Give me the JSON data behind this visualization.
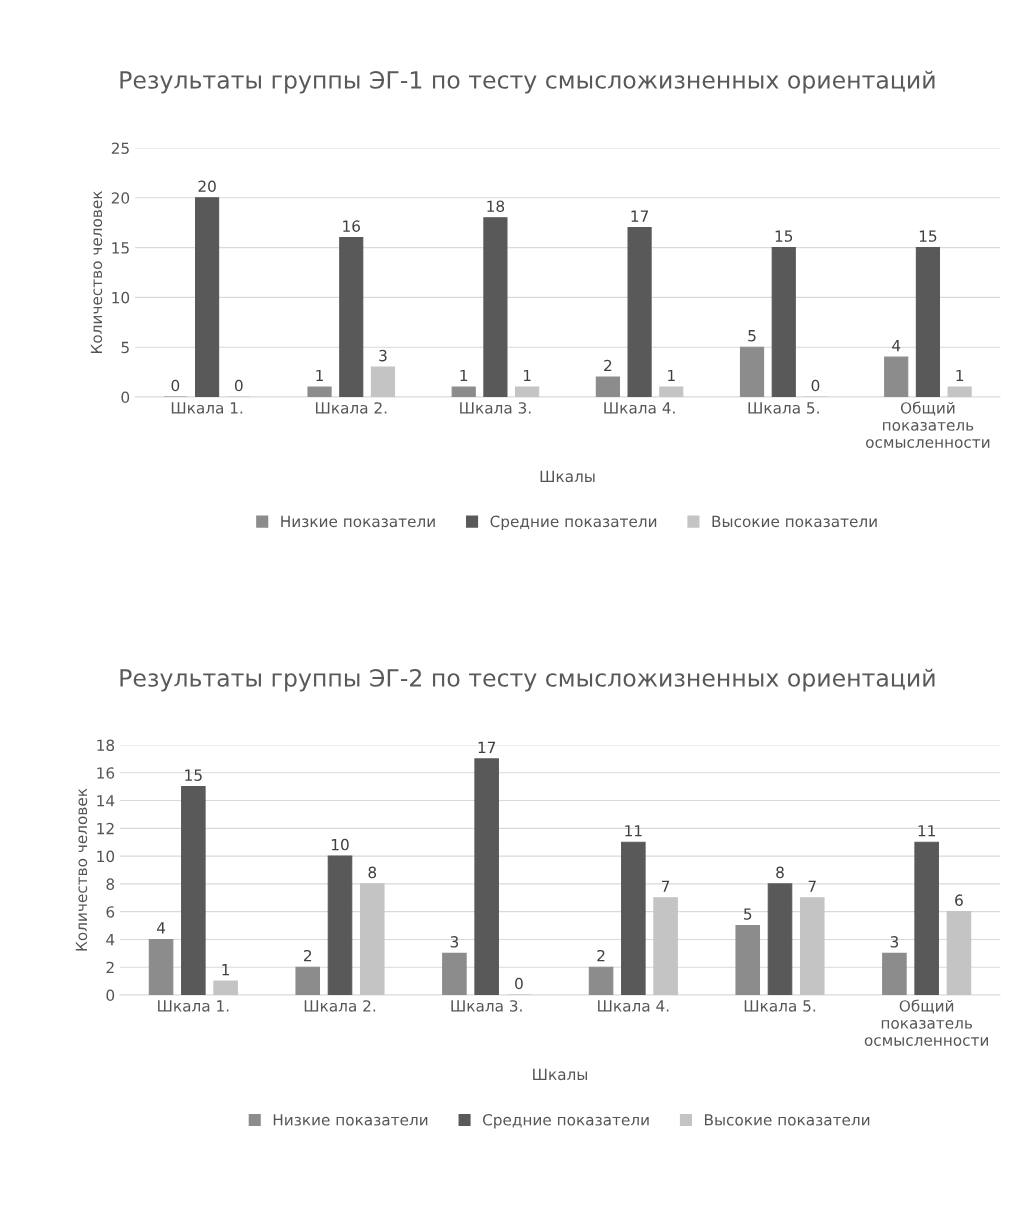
{
  "chart_data": [
    {
      "type": "bar",
      "title": "Результаты группы ЭГ-1 по тесту смысложизненных ориентаций",
      "xlabel": "Шкалы",
      "ylabel": "Количество человек",
      "categories": [
        "Шкала 1.",
        "Шкала 2.",
        "Шкала 3.",
        "Шкала 4.",
        "Шкала 5.",
        "Общий показатель осмысленности"
      ],
      "series": [
        {
          "name": "Низкие показатели",
          "color": "#8c8c8c",
          "values": [
            0,
            1,
            1,
            2,
            5,
            4
          ]
        },
        {
          "name": "Средние показатели",
          "color": "#595959",
          "values": [
            20,
            16,
            18,
            17,
            15,
            15
          ]
        },
        {
          "name": "Высокие показатели",
          "color": "#c4c4c4",
          "values": [
            0,
            3,
            1,
            1,
            0,
            1
          ]
        }
      ],
      "ylim": [
        0,
        25
      ],
      "yticks": [
        0,
        5,
        10,
        15,
        20,
        25
      ],
      "grid": "y",
      "legend": "bottom",
      "data_labels": true
    },
    {
      "type": "bar",
      "title": "Результаты группы ЭГ-2 по тесту смысложизненных ориентаций",
      "xlabel": "Шкалы",
      "ylabel": "Количество человек",
      "categories": [
        "Шкала 1.",
        "Шкала 2.",
        "Шкала 3.",
        "Шкала 4.",
        "Шкала 5.",
        "Общий показатель осмысленности"
      ],
      "series": [
        {
          "name": "Низкие показатели",
          "color": "#8c8c8c",
          "values": [
            4,
            2,
            3,
            2,
            5,
            3
          ]
        },
        {
          "name": "Средние показатели",
          "color": "#595959",
          "values": [
            15,
            10,
            17,
            11,
            8,
            11
          ]
        },
        {
          "name": "Высокие показатели",
          "color": "#c4c4c4",
          "values": [
            1,
            8,
            0,
            7,
            7,
            6
          ]
        }
      ],
      "ylim": [
        0,
        18
      ],
      "yticks": [
        0,
        2,
        4,
        6,
        8,
        10,
        12,
        14,
        16,
        18
      ],
      "grid": "y",
      "legend": "bottom",
      "data_labels": true
    }
  ]
}
